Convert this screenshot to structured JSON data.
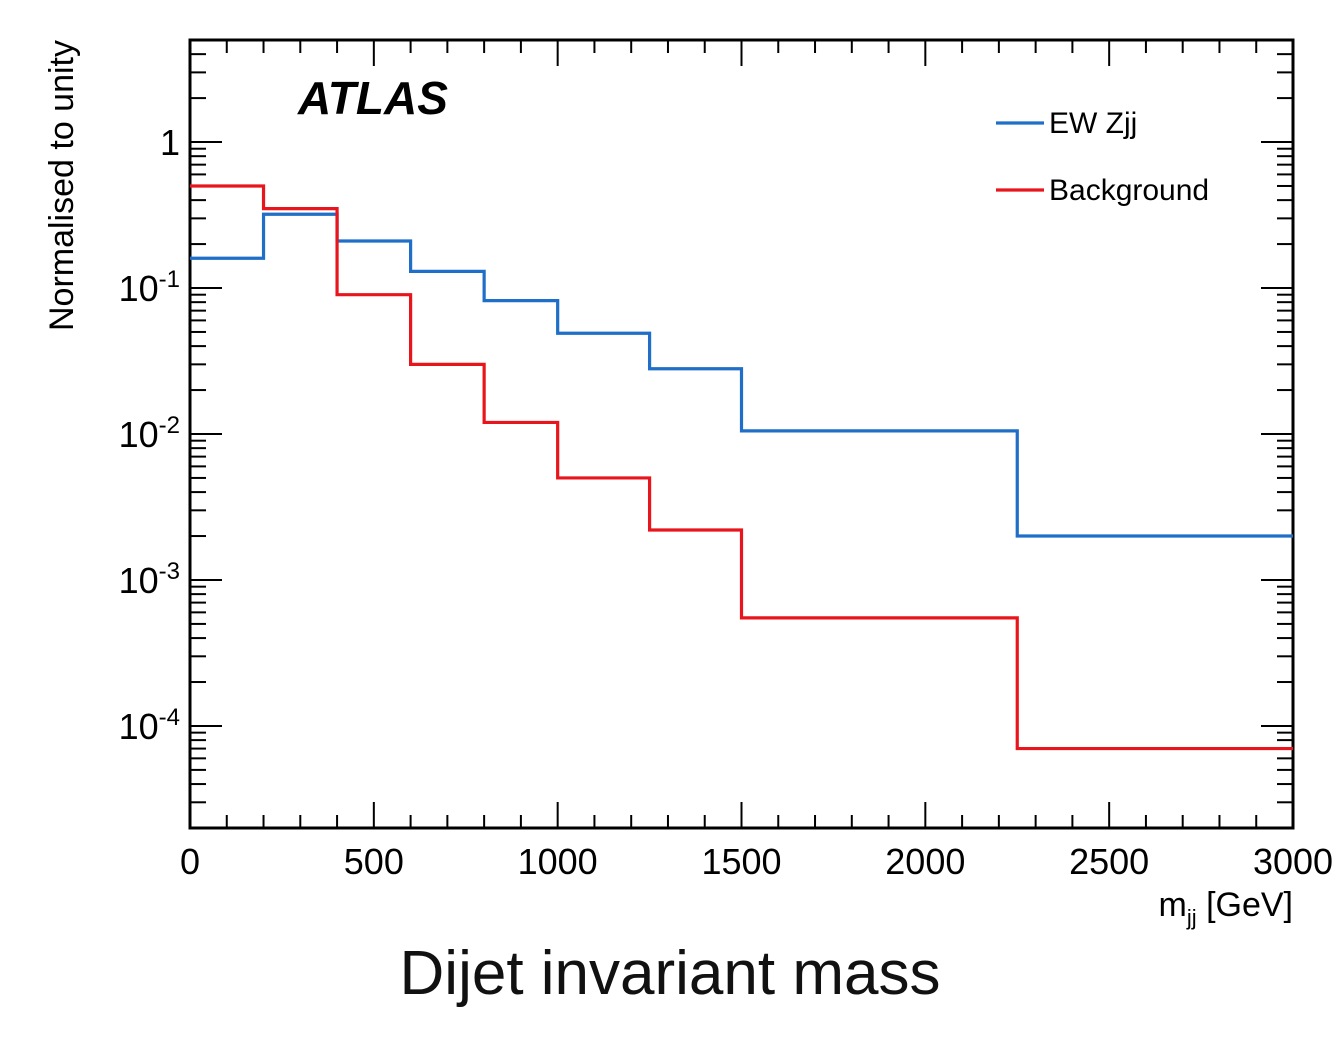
{
  "caption": "Dijet invariant mass",
  "chart_data": {
    "type": "line",
    "step": true,
    "experiment_label": "ATLAS",
    "xlabel": "m",
    "xlabel_sub": "jj",
    "xlabel_unit": "[GeV]",
    "ylabel": "Normalised to unity",
    "xlim": [
      0,
      3000
    ],
    "ylim": [
      2e-05,
      5
    ],
    "yscale": "log",
    "grid": false,
    "legend_position": "top-right",
    "x_ticks": [
      {
        "value": 0,
        "label": "0"
      },
      {
        "value": 500,
        "label": "500"
      },
      {
        "value": 1000,
        "label": "1000"
      },
      {
        "value": 1500,
        "label": "1500"
      },
      {
        "value": 2000,
        "label": "2000"
      },
      {
        "value": 2500,
        "label": "2500"
      },
      {
        "value": 3000,
        "label": "3000"
      }
    ],
    "y_ticks": [
      {
        "value": 1,
        "base": "1",
        "exp": ""
      },
      {
        "value": 0.1,
        "base": "10",
        "exp": "-1"
      },
      {
        "value": 0.01,
        "base": "10",
        "exp": "-2"
      },
      {
        "value": 0.001,
        "base": "10",
        "exp": "-3"
      },
      {
        "value": 0.0001,
        "base": "10",
        "exp": "-4"
      }
    ],
    "bin_edges": [
      0,
      200,
      400,
      600,
      800,
      1000,
      1250,
      1500,
      2250,
      3000
    ],
    "series": [
      {
        "name": "EW Zjj",
        "color": "#1f6fc8",
        "values": [
          0.16,
          0.32,
          0.21,
          0.13,
          0.082,
          0.049,
          0.028,
          0.0105,
          0.002
        ]
      },
      {
        "name": "Background",
        "color": "#e8161c",
        "values": [
          0.5,
          0.35,
          0.09,
          0.03,
          0.012,
          0.005,
          0.0022,
          0.00055,
          7e-05
        ]
      }
    ]
  }
}
